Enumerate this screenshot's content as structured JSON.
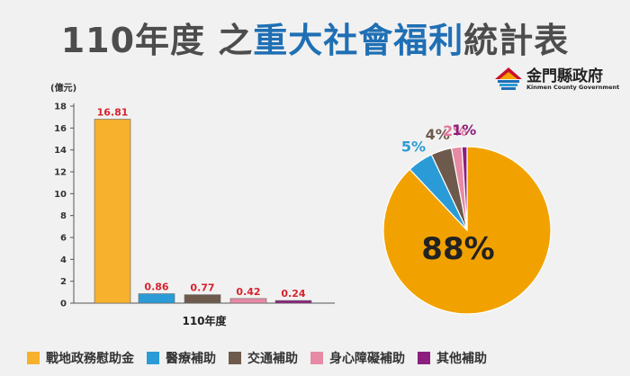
{
  "title": {
    "part1": "110年度 之",
    "part2": "重大社會福利",
    "part3": "統計表"
  },
  "logo": {
    "name_cn": "金門縣政府",
    "name_en": "Kinmen County Government"
  },
  "colors": {
    "title_dark": "#4d4d4d",
    "title_blue": "#1f6fb4",
    "value_label": "#d7232f"
  },
  "chart_data": [
    {
      "type": "bar",
      "ylabel": "(億元)",
      "xlabel": "110年度",
      "ylim": [
        0,
        18
      ],
      "yticks": [
        0,
        2,
        4,
        6,
        8,
        10,
        12,
        14,
        16,
        18
      ],
      "categories": [
        "戰地政務慰助金",
        "醫療補助",
        "交通補助",
        "身心障礙補助",
        "其他補助"
      ],
      "values": [
        16.81,
        0.86,
        0.77,
        0.42,
        0.24
      ],
      "value_labels": [
        "16.81",
        "0.86",
        "0.77",
        "0.42",
        "0.24"
      ],
      "colors": [
        "#f7b12d",
        "#2a9bd7",
        "#6e5a4c",
        "#e78aa5",
        "#8c1f7e"
      ],
      "grid": false
    },
    {
      "type": "pie",
      "categories": [
        "戰地政務慰助金",
        "醫療補助",
        "交通補助",
        "身心障礙補助",
        "其他補助"
      ],
      "values": [
        88,
        5,
        4,
        2,
        1
      ],
      "labels": [
        "88%",
        "5%",
        "4%",
        "2%",
        "1%"
      ],
      "colors": [
        "#f2a200",
        "#2a9bd7",
        "#6e5a4c",
        "#e78aa5",
        "#8c1f7e"
      ],
      "label_colors": [
        "#222222",
        "#2a9bd7",
        "#6e5a4c",
        "#e07aa0",
        "#8c1f7e"
      ]
    }
  ],
  "legend": [
    {
      "label": "戰地政務慰助金",
      "color": "#f7b12d"
    },
    {
      "label": "醫療補助",
      "color": "#2a9bd7"
    },
    {
      "label": "交通補助",
      "color": "#6e5a4c"
    },
    {
      "label": "身心障礙補助",
      "color": "#e78aa5"
    },
    {
      "label": "其他補助",
      "color": "#8c1f7e"
    }
  ]
}
